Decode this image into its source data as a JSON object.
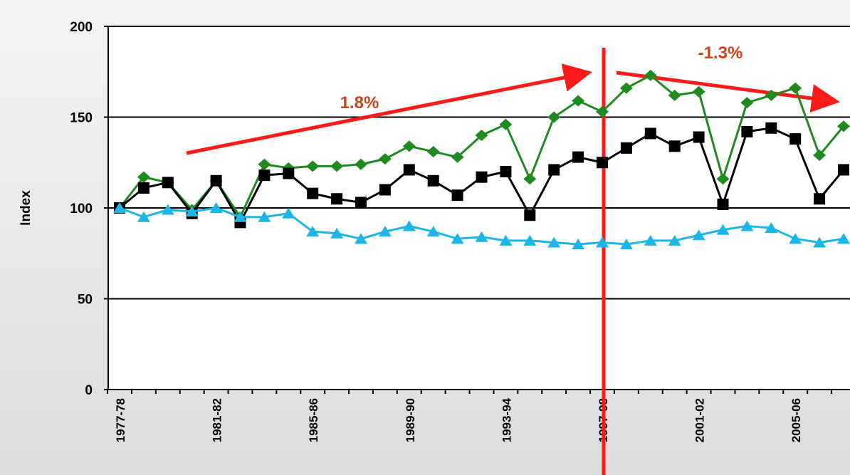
{
  "chart_data": {
    "type": "line",
    "y_label": "Index",
    "annotations": [
      "1.8%",
      "-1.3%"
    ],
    "categories": [
      "1977-78",
      null,
      null,
      null,
      "1981-82",
      null,
      null,
      null,
      "1985-86",
      null,
      null,
      null,
      "1989-90",
      null,
      null,
      null,
      "1993-94",
      null,
      null,
      null,
      "1997-98",
      null,
      null,
      null,
      "2001-02",
      null,
      null,
      null,
      "2005-06",
      null,
      null
    ],
    "series": [
      {
        "color": "#1f8a1f",
        "marker": "diamond",
        "values": [
          100,
          117,
          114,
          99,
          115,
          95,
          124,
          122,
          123,
          123,
          124,
          127,
          134,
          131,
          128,
          140,
          146,
          116,
          150,
          159,
          153,
          166,
          173,
          162,
          164,
          116,
          158,
          162,
          166,
          129,
          145
        ]
      },
      {
        "color": "#000000",
        "marker": "square",
        "values": [
          100,
          111,
          114,
          97,
          115,
          92,
          118,
          119,
          108,
          105,
          103,
          110,
          121,
          115,
          107,
          117,
          120,
          96,
          121,
          128,
          125,
          133,
          141,
          134,
          139,
          102,
          142,
          144,
          138,
          105,
          121
        ]
      },
      {
        "color": "#1cb5e8",
        "marker": "triangle",
        "values": [
          100,
          95,
          99,
          98,
          100,
          95,
          95,
          97,
          87,
          86,
          83,
          87,
          90,
          87,
          83,
          84,
          82,
          82,
          81,
          80,
          81,
          80,
          82,
          82,
          85,
          88,
          90,
          89,
          83,
          81,
          83
        ]
      }
    ],
    "ylim": [
      0,
      200
    ],
    "yticks": [
      0,
      50,
      100,
      150,
      200
    ],
    "grid": true
  }
}
